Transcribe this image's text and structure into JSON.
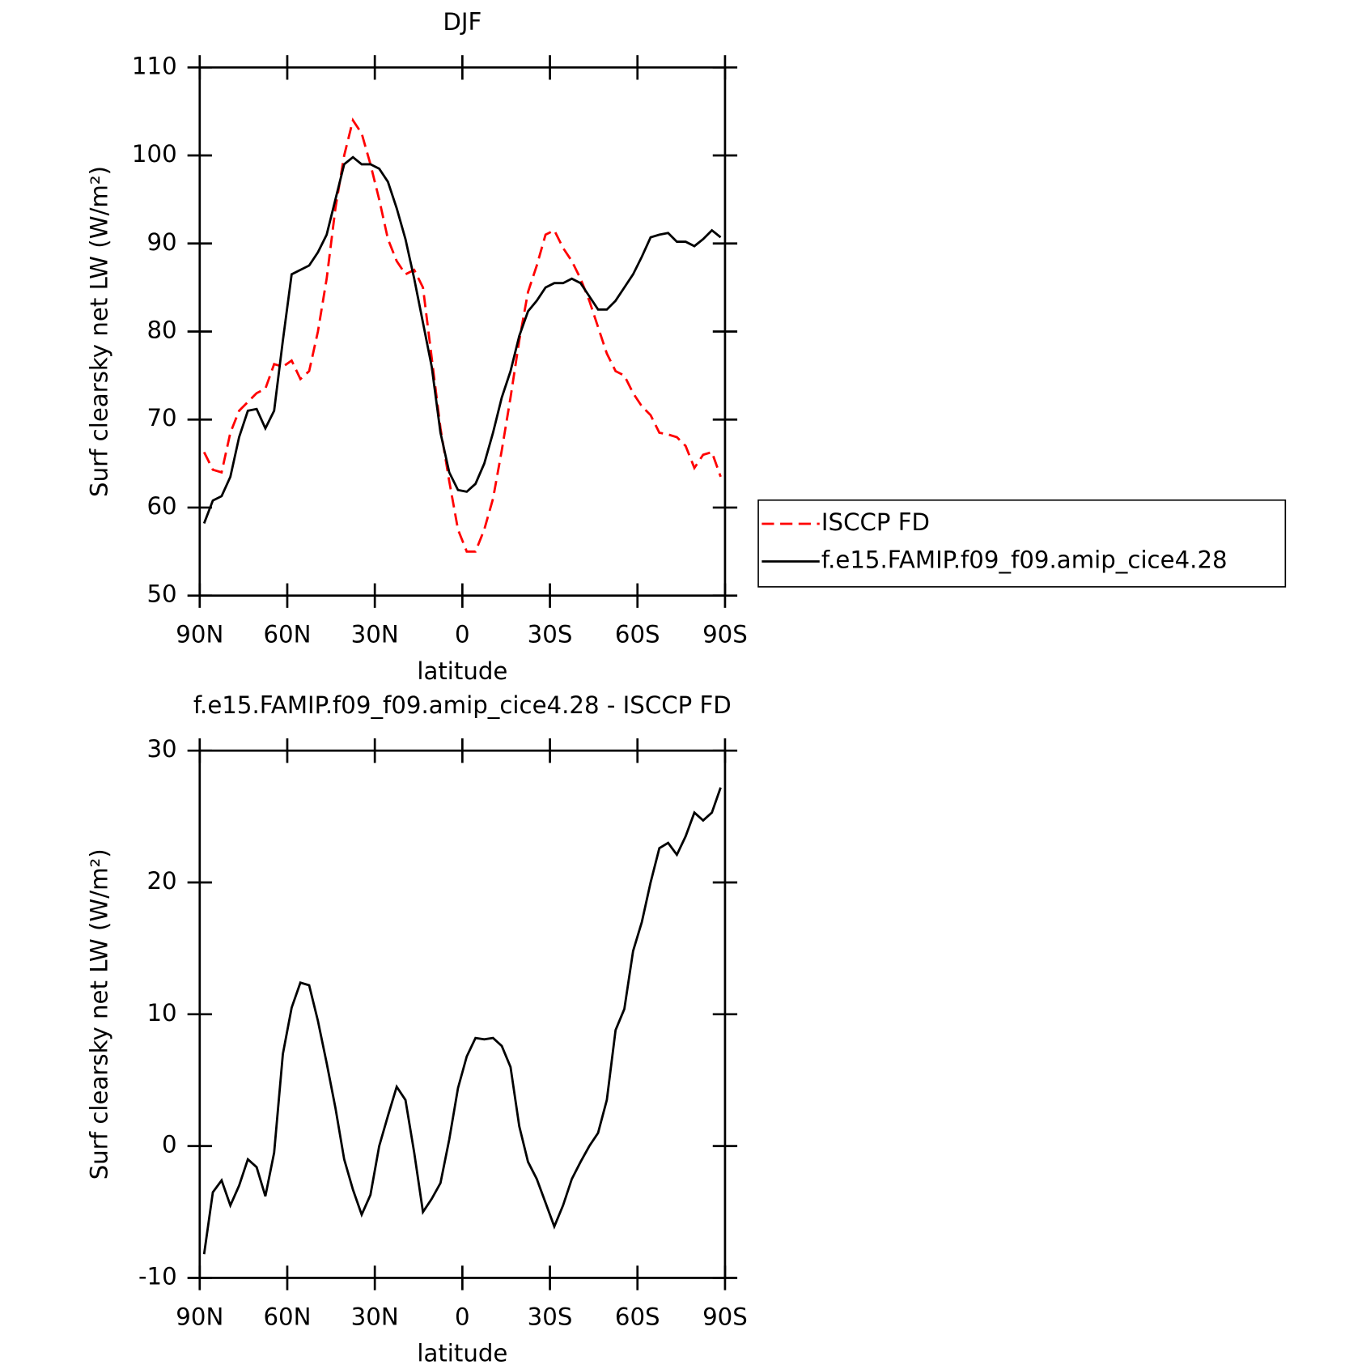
{
  "chart_data": [
    {
      "type": "line",
      "title": "DJF",
      "xlabel": "latitude",
      "ylabel": "Surf clearsky net LW (W/m²)",
      "x": [
        88.5,
        85.5,
        82.5,
        79.5,
        76.5,
        73.5,
        70.5,
        67.5,
        64.5,
        61.5,
        58.5,
        55.5,
        52.5,
        49.5,
        46.5,
        43.5,
        40.5,
        37.5,
        34.5,
        31.5,
        28.5,
        25.5,
        22.5,
        19.5,
        16.5,
        13.5,
        10.5,
        7.5,
        4.5,
        1.5,
        -1.5,
        -4.5,
        -7.5,
        -10.5,
        -13.5,
        -16.5,
        -19.5,
        -22.5,
        -25.5,
        -28.5,
        -31.5,
        -34.5,
        -37.5,
        -40.5,
        -43.5,
        -46.5,
        -49.5,
        -52.5,
        -55.5,
        -58.5,
        -61.5,
        -64.5,
        -67.5,
        -70.5,
        -73.5,
        -76.5,
        -79.5,
        -82.5,
        -85.5,
        -88.5
      ],
      "series": [
        {
          "name": "ISCCP FD",
          "color": "#ff0000",
          "line_style": "dashed",
          "values": [
            66.3,
            64.3,
            64,
            68.5,
            71,
            72,
            73,
            73.5,
            76.3,
            76,
            76.7,
            74.6,
            75.5,
            80,
            86,
            94,
            100,
            104,
            102.5,
            99,
            95,
            90.5,
            88,
            86.5,
            87,
            85,
            77,
            69,
            63,
            57.5,
            55,
            55,
            57.5,
            61,
            66.5,
            72.5,
            79,
            84.5,
            87.5,
            91,
            91.5,
            89.5,
            88,
            86,
            83.5,
            80.5,
            77.5,
            75.5,
            75,
            73,
            71.5,
            70.5,
            68.5,
            68.3,
            68,
            67,
            64.5,
            66,
            66.3,
            63.5
          ]
        },
        {
          "name": "f.e15.FAMIP.f09_f09.amip_cice4.28",
          "color": "#000000",
          "line_style": "solid",
          "values": [
            58.2,
            60.8,
            61.3,
            63.5,
            68,
            71,
            71.2,
            69,
            71,
            79,
            86.5,
            87,
            87.5,
            89,
            91,
            95,
            99,
            99.8,
            99,
            99,
            98.5,
            97,
            94,
            90.5,
            86,
            81,
            76,
            68.5,
            64,
            62,
            61.8,
            62.7,
            65,
            68.5,
            72.5,
            75.5,
            79.5,
            82.3,
            83.5,
            85,
            85.5,
            85.5,
            86,
            85.5,
            84,
            82.5,
            82.5,
            83.5,
            85,
            86.5,
            88.5,
            90.7,
            91,
            91.2,
            90.2,
            90.2,
            89.7,
            90.5,
            91.5,
            90.7
          ]
        }
      ],
      "xlim": [
        90,
        -90
      ],
      "xticks": [
        {
          "value": 90,
          "label": "90N"
        },
        {
          "value": 60,
          "label": "60N"
        },
        {
          "value": 30,
          "label": "30N"
        },
        0,
        {
          "value": -30,
          "label": "30S"
        },
        {
          "value": -60,
          "label": "60S"
        },
        {
          "value": -90,
          "label": "90S"
        }
      ],
      "ylim": [
        50,
        110
      ],
      "yticks": [
        50,
        60,
        70,
        80,
        90,
        100,
        110
      ],
      "legend": "outside right"
    },
    {
      "type": "line",
      "title": "f.e15.FAMIP.f09_f09.amip_cice4.28 - ISCCP FD",
      "xlabel": "latitude",
      "ylabel": "Surf clearsky net LW (W/m²)",
      "x": [
        88.5,
        85.5,
        82.5,
        79.5,
        76.5,
        73.5,
        70.5,
        67.5,
        64.5,
        61.5,
        58.5,
        55.5,
        52.5,
        49.5,
        46.5,
        43.5,
        40.5,
        37.5,
        34.5,
        31.5,
        28.5,
        25.5,
        22.5,
        19.5,
        16.5,
        13.5,
        10.5,
        7.5,
        4.5,
        1.5,
        -1.5,
        -4.5,
        -7.5,
        -10.5,
        -13.5,
        -16.5,
        -19.5,
        -22.5,
        -25.5,
        -28.5,
        -31.5,
        -34.5,
        -37.5,
        -40.5,
        -43.5,
        -46.5,
        -49.5,
        -52.5,
        -55.5,
        -58.5,
        -61.5,
        -64.5,
        -67.5,
        -70.5,
        -73.5,
        -76.5,
        -79.5,
        -82.5,
        -85.5,
        -88.5
      ],
      "series": [
        {
          "color": "#000000",
          "line_style": "solid",
          "values": [
            -8.2,
            -3.5,
            -2.6,
            -4.5,
            -3,
            -1,
            -1.6,
            -3.8,
            -0.5,
            7,
            10.5,
            12.4,
            12.2,
            9.5,
            6.3,
            2.9,
            -1,
            -3.3,
            -5.2,
            -3.7,
            0,
            2.3,
            4.5,
            3.5,
            -0.5,
            -5,
            -4,
            -2.8,
            0.5,
            4.4,
            6.8,
            8.2,
            8.1,
            8.2,
            7.6,
            6,
            1.5,
            -1.2,
            -2.5,
            -4.3,
            -6.1,
            -4.5,
            -2.5,
            -1.2,
            0,
            1,
            3.5,
            8.8,
            10.4,
            14.8,
            17,
            20,
            22.6,
            23,
            22.1,
            23.5,
            25.3,
            24.7,
            25.3,
            27.2
          ]
        }
      ],
      "xlim": [
        90,
        -90
      ],
      "xticks": [
        {
          "value": 90,
          "label": "90N"
        },
        {
          "value": 60,
          "label": "60N"
        },
        {
          "value": 30,
          "label": "30N"
        },
        0,
        {
          "value": -30,
          "label": "30S"
        },
        {
          "value": -60,
          "label": "60S"
        },
        {
          "value": -90,
          "label": "90S"
        }
      ],
      "ylim": [
        -10,
        30
      ],
      "yticks": [
        -10,
        0,
        10,
        20,
        30
      ]
    }
  ]
}
